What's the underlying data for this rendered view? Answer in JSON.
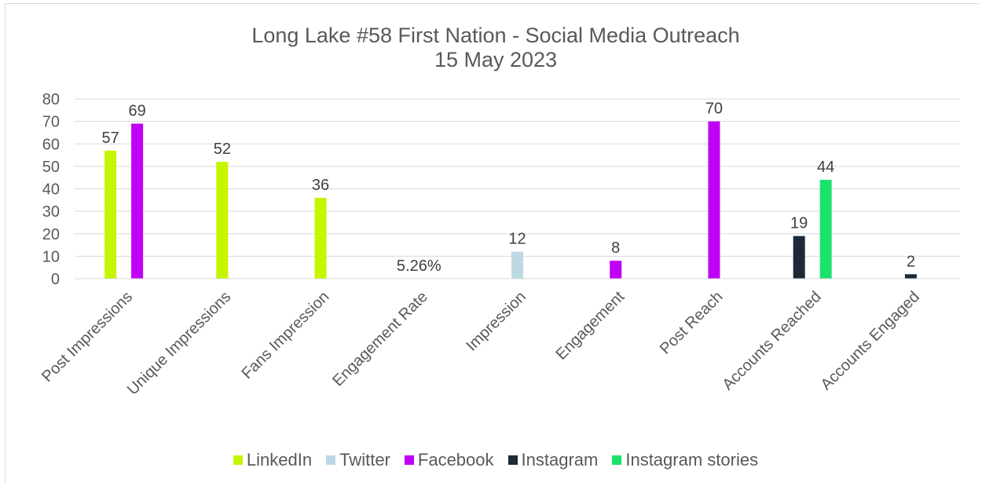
{
  "chart_data": {
    "type": "bar",
    "title": "Long Lake #58 First Nation - Social Media Outreach",
    "subtitle": "15 May 2023",
    "xlabel": "",
    "ylabel": "",
    "ylim": [
      0,
      80
    ],
    "yticks": [
      0,
      10,
      20,
      30,
      40,
      50,
      60,
      70,
      80
    ],
    "grid": true,
    "legend_position": "bottom",
    "categories": [
      "Post Impressions",
      "Unique Impressions",
      "Fans Impression",
      "Engagement Rate",
      "Impression",
      "Engagement",
      "Post Reach",
      "Accounts Reached",
      "Accounts Engaged"
    ],
    "series": [
      {
        "name": "LinkedIn",
        "color": "#c6f500",
        "values": [
          57,
          52,
          36,
          0.0526,
          null,
          null,
          null,
          null,
          null
        ],
        "labels": [
          "57",
          "52",
          "36",
          "5.26%",
          "",
          "",
          "",
          "",
          ""
        ]
      },
      {
        "name": "Twitter",
        "color": "#bcd9e4",
        "values": [
          null,
          null,
          null,
          null,
          12,
          null,
          null,
          null,
          null
        ],
        "labels": [
          "",
          "",
          "",
          "",
          "12",
          "",
          "",
          "",
          ""
        ]
      },
      {
        "name": "Facebook",
        "color": "#c000f7",
        "values": [
          69,
          null,
          null,
          null,
          null,
          8,
          70,
          null,
          null
        ],
        "labels": [
          "69",
          "",
          "",
          "",
          "",
          "8",
          "70",
          "",
          ""
        ]
      },
      {
        "name": "Instagram",
        "color": "#1b2a36",
        "values": [
          null,
          null,
          null,
          null,
          null,
          null,
          null,
          19,
          2
        ],
        "labels": [
          "",
          "",
          "",
          "",
          "",
          "",
          "",
          "19",
          "2"
        ]
      },
      {
        "name": "Instagram stories",
        "color": "#19e36a",
        "values": [
          null,
          null,
          null,
          null,
          null,
          null,
          null,
          44,
          null
        ],
        "labels": [
          "",
          "",
          "",
          "",
          "",
          "",
          "",
          "44",
          ""
        ]
      }
    ]
  }
}
